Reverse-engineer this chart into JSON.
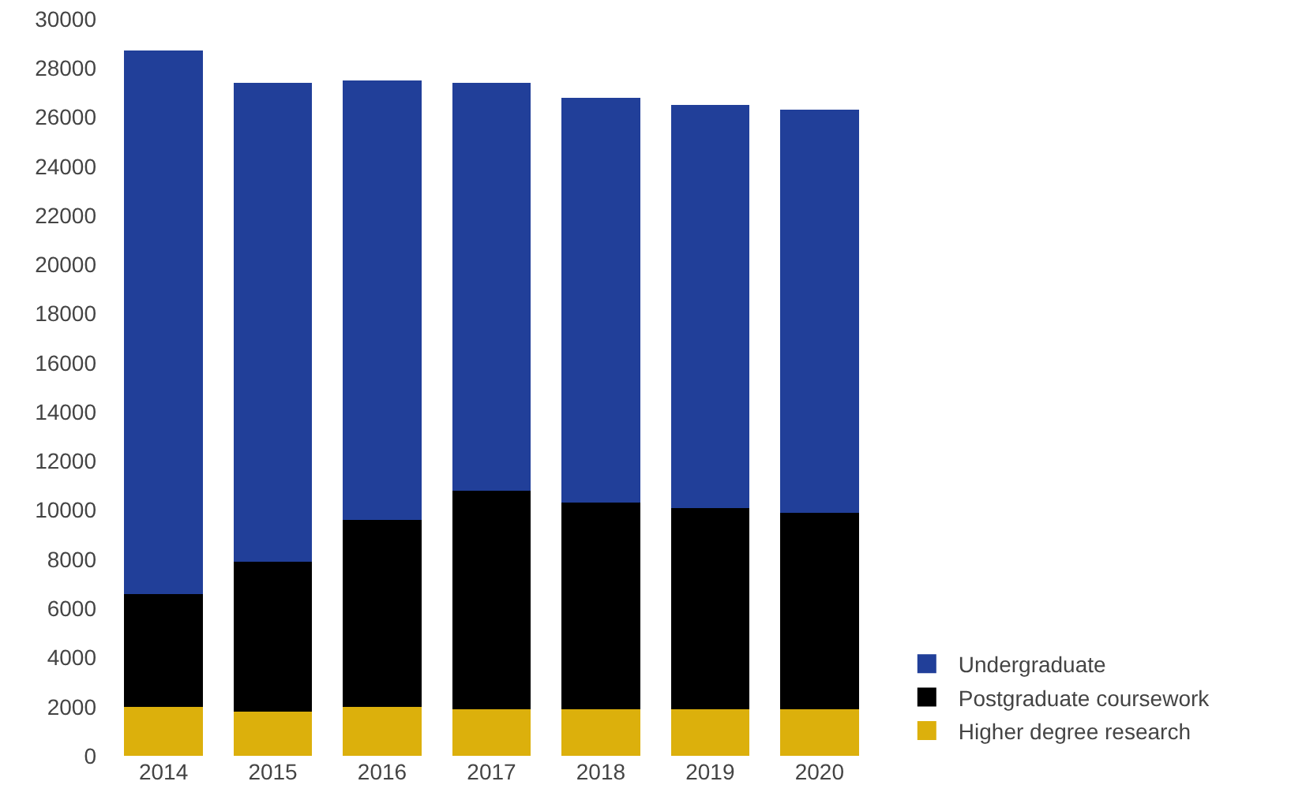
{
  "chart_data": {
    "type": "bar",
    "stacked": true,
    "categories": [
      "2014",
      "2015",
      "2016",
      "2017",
      "2018",
      "2019",
      "2020"
    ],
    "series": [
      {
        "name": "Higher degree research",
        "color": "#dcb00c",
        "values": [
          2000,
          1800,
          2000,
          1900,
          1900,
          1900,
          1900
        ]
      },
      {
        "name": "Postgraduate coursework",
        "color": "#000000",
        "values": [
          4600,
          6100,
          7600,
          8900,
          8400,
          8200,
          8000
        ]
      },
      {
        "name": "Undergraduate",
        "color": "#213f99",
        "values": [
          22100,
          19500,
          17900,
          16600,
          16500,
          16400,
          16400
        ]
      }
    ],
    "ylim": [
      0,
      30000
    ],
    "yticks": [
      0,
      2000,
      4000,
      6000,
      8000,
      10000,
      12000,
      14000,
      16000,
      18000,
      20000,
      22000,
      24000,
      26000,
      28000,
      30000
    ],
    "grid": false,
    "legend": "bottom right"
  }
}
